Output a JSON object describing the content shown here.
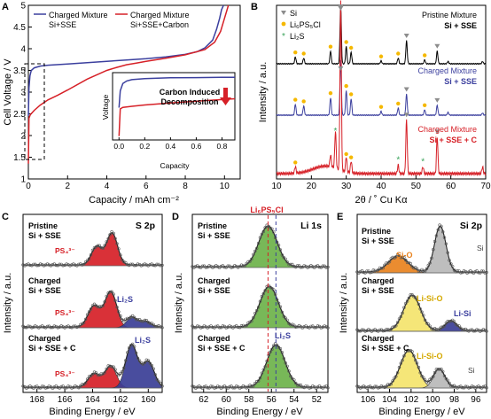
{
  "panels": {
    "A": {
      "letter": "A",
      "xlabel": "Capacity / mAh cm⁻²",
      "ylabel": "Cell Voltage / V",
      "xticks": [
        "0",
        "2",
        "4",
        "6",
        "8",
        "10"
      ],
      "yticks": [
        "1",
        "1.5",
        "2",
        "2.5",
        "3",
        "3.5",
        "4",
        "4.5",
        "5"
      ],
      "legend1_l1": "Charged Mixture",
      "legend1_l2": "Si+SSE",
      "legend2_l1": "Charged Mixture",
      "legend2_l2": "Si+SSE+Carbon",
      "inset_ylabel": "Voltage",
      "inset_xlabel": "Capacity",
      "inset_xticks": [
        "0.0",
        "0.2",
        "0.4",
        "0.6",
        "0.8"
      ],
      "inset_note_l1": "Carbon Induced",
      "inset_note_l2": "Decomposition"
    },
    "B": {
      "letter": "B",
      "xlabel": "2θ / ˚ Cu Kα",
      "ylabel": "Intensity / a.u.",
      "xticks": [
        "10",
        "20",
        "30",
        "40",
        "50",
        "60",
        "70"
      ],
      "key_si": "Si",
      "key_lpsc": "Li₆PS₅Cl",
      "key_li2s": "Li₂S",
      "t1_l1": "Pristine Mixture",
      "t1_l2": "Si + SSE",
      "t2_l1": "Charged Mixture",
      "t2_l2": "Si + SSE",
      "t3_l1": "Charged Mixture",
      "t3_l2": "Si + SSE + C"
    },
    "C": {
      "letter": "C",
      "title": "S 2p",
      "xlabel": "Binding Energy / eV",
      "ylabel": "Intensity / a.u.",
      "xticks": [
        "168",
        "166",
        "164",
        "162",
        "160"
      ],
      "r1_l1": "Pristine",
      "r1_l2": "Si + SSE",
      "r2_l1": "Charged",
      "r2_l2": "Si + SSE",
      "r3_l1": "Charged",
      "r3_l2": "Si + SSE + C",
      "ps4": "PS₄³⁻",
      "li2s": "Li₂S"
    },
    "D": {
      "letter": "D",
      "title": "Li 1s",
      "top_label": "Li₆PS₅Cl",
      "xlabel": "Binding Energy / eV",
      "ylabel": "Intensity / a.u.",
      "xticks": [
        "62",
        "60",
        "58",
        "56",
        "54",
        "52"
      ],
      "r1_l1": "Pristine",
      "r1_l2": "Si + SSE",
      "r2_l1": "Charged",
      "r2_l2": "Si + SSE",
      "r3_l1": "Charged",
      "r3_l2": "Si + SSE + C",
      "li2s": "Li₂S"
    },
    "E": {
      "letter": "E",
      "title": "Si 2p",
      "xlabel": "Binding Energy / eV",
      "ylabel": "Intensity / a.u.",
      "xticks": [
        "106",
        "104",
        "102",
        "100",
        "98",
        "96"
      ],
      "r1_l1": "Pristine",
      "r1_l2": "Si + SSE",
      "r2_l1": "Charged",
      "r2_l2": "Si + SSE",
      "r3_l1": "Charged",
      "r3_l2": "Si + SSE + C",
      "si": "Si",
      "sio": "Si-O",
      "lisio": "Li-Si-O",
      "lisi": "Li-Si"
    }
  },
  "colors": {
    "blue": "#3b3f9e",
    "red": "#d62027",
    "green_fill": "#6cb24a",
    "orange": "#e8821e",
    "yellow": "#f4e46c",
    "gray_fill": "#b9b9b9",
    "navy_fill": "#3a3e96",
    "marker_si": "#8c8c8c",
    "marker_lpsc": "#f5b800",
    "marker_li2s": "#3aa35a"
  },
  "chart_data": [
    {
      "panel": "A",
      "type": "line",
      "xlabel": "Capacity / mAh cm⁻²",
      "ylabel": "Cell Voltage / V",
      "xlim": [
        0,
        10.8
      ],
      "ylim": [
        1,
        5
      ],
      "series": [
        {
          "name": "Charged Mixture Si+SSE",
          "color": "#3b3f9e",
          "x": [
            0,
            0.03,
            0.08,
            0.15,
            0.3,
            0.6,
            1,
            2,
            3,
            4,
            5,
            6,
            7,
            8,
            8.6,
            9.0,
            9.4,
            9.6,
            9.75,
            9.85,
            9.95
          ],
          "y": [
            2.45,
            3.1,
            3.38,
            3.5,
            3.56,
            3.6,
            3.62,
            3.65,
            3.68,
            3.71,
            3.74,
            3.77,
            3.81,
            3.87,
            3.93,
            4.02,
            4.2,
            4.45,
            4.7,
            4.9,
            5.0
          ]
        },
        {
          "name": "Charged Mixture Si+SSE+Carbon",
          "color": "#d62027",
          "x": [
            0,
            0.03,
            0.1,
            0.3,
            0.6,
            1,
            1.5,
            2,
            3,
            4,
            4.5,
            5,
            5.5,
            6,
            7,
            8,
            9,
            9.5,
            9.8,
            10.0,
            10.2
          ],
          "y": [
            1.35,
            2.4,
            2.48,
            2.58,
            2.7,
            2.82,
            2.93,
            3.05,
            3.3,
            3.5,
            3.57,
            3.63,
            3.67,
            3.71,
            3.78,
            3.86,
            3.98,
            4.15,
            4.4,
            4.7,
            5.0
          ]
        }
      ]
    },
    {
      "panel": "A-inset",
      "type": "line",
      "xlabel": "Capacity",
      "ylabel": "Voltage",
      "xlim": [
        -0.05,
        0.9
      ],
      "series": [
        {
          "name": "Si+SSE",
          "color": "#3b3f9e",
          "x": [
            0,
            0.01,
            0.03,
            0.06,
            0.1,
            0.2,
            0.4,
            0.6,
            0.8,
            0.9
          ],
          "y": [
            2.45,
            3.1,
            3.38,
            3.48,
            3.53,
            3.57,
            3.6,
            3.61,
            3.62,
            3.62
          ]
        },
        {
          "name": "Si+SSE+Carbon",
          "color": "#d62027",
          "x": [
            0,
            0.01,
            0.03,
            0.1,
            0.2,
            0.4,
            0.6,
            0.8,
            0.9
          ],
          "y": [
            1.35,
            2.4,
            2.46,
            2.5,
            2.55,
            2.63,
            2.7,
            2.76,
            2.79
          ]
        }
      ]
    },
    {
      "panel": "B",
      "type": "line",
      "xlabel": "2θ / ˚ Cu Kα",
      "ylabel": "Intensity / a.u.",
      "xlim": [
        10,
        70
      ],
      "series": [
        {
          "name": "Pristine Mixture Si + SSE",
          "color": "#000000",
          "baseline": 0,
          "peaks": [
            [
              15.4,
              0.12
            ],
            [
              17.8,
              0.1
            ],
            [
              25.5,
              0.22
            ],
            [
              28.4,
              1.0
            ],
            [
              30.0,
              0.3
            ],
            [
              31.4,
              0.2
            ],
            [
              40.0,
              0.05
            ],
            [
              44.9,
              0.1
            ],
            [
              47.3,
              0.4
            ],
            [
              52.5,
              0.07
            ],
            [
              56.1,
              0.22
            ],
            [
              59.2,
              0.04
            ],
            [
              69.1,
              0.04
            ]
          ]
        },
        {
          "name": "Charged Mixture Si + SSE",
          "color": "#3b3f9e",
          "baseline": 1,
          "peaks": [
            [
              15.4,
              0.2
            ],
            [
              17.8,
              0.17
            ],
            [
              25.5,
              0.32
            ],
            [
              28.4,
              1.0
            ],
            [
              30.0,
              0.45
            ],
            [
              31.4,
              0.3
            ],
            [
              40.0,
              0.07
            ],
            [
              44.9,
              0.13
            ],
            [
              47.3,
              0.38
            ],
            [
              52.5,
              0.1
            ],
            [
              56.1,
              0.18
            ],
            [
              59.2,
              0.05
            ],
            [
              69.1,
              0.04
            ]
          ]
        },
        {
          "name": "Charged Mixture Si + SSE + C",
          "color": "#d62027",
          "baseline": 2,
          "peaks": [
            [
              15.4,
              0.04
            ],
            [
              25.5,
              0.07
            ],
            [
              26.9,
              0.22
            ],
            [
              28.4,
              1.0
            ],
            [
              30.0,
              0.09
            ],
            [
              31.4,
              0.07
            ],
            [
              44.9,
              0.05
            ],
            [
              47.3,
              0.32
            ],
            [
              52.0,
              0.04
            ],
            [
              56.1,
              0.22
            ],
            [
              69.1,
              0.04
            ]
          ]
        }
      ],
      "markers": {
        "Si": [
          28.4,
          47.3,
          56.1
        ],
        "Li6PS5Cl": [
          15.4,
          17.8,
          25.5,
          30.0,
          31.4,
          40.0,
          44.9,
          52.5
        ],
        "Li2S": [
          26.9,
          44.9,
          52.0
        ]
      }
    },
    {
      "panel": "C",
      "type": "area",
      "xlim": [
        169,
        159
      ],
      "xlabel": "Binding Energy / eV",
      "rows": [
        {
          "label": "Pristine Si + SSE",
          "components": [
            {
              "name": "PS4 3-",
              "color": "#d62027",
              "centers": [
                163.7,
                162.6
              ],
              "amps": [
                0.55,
                0.95
              ],
              "width": 0.55
            }
          ]
        },
        {
          "label": "Charged Si + SSE",
          "components": [
            {
              "name": "PS4 3-",
              "color": "#d62027",
              "centers": [
                163.9,
                162.7
              ],
              "amps": [
                0.6,
                1.0
              ],
              "width": 0.6
            },
            {
              "name": "Li2S",
              "color": "#3a3e96",
              "centers": [
                161.2,
                160.2
              ],
              "amps": [
                0.28,
                0.16
              ],
              "width": 0.55
            }
          ]
        },
        {
          "label": "Charged Si + SSE + C",
          "components": [
            {
              "name": "PS4 3-",
              "color": "#d62027",
              "centers": [
                163.9,
                162.7
              ],
              "amps": [
                0.32,
                0.5
              ],
              "width": 0.6
            },
            {
              "name": "Li2S",
              "color": "#3a3e96",
              "centers": [
                161.2,
                160.0
              ],
              "amps": [
                1.0,
                0.6
              ],
              "width": 0.6
            }
          ]
        }
      ]
    },
    {
      "panel": "D",
      "type": "area",
      "xlim": [
        63,
        51
      ],
      "xlabel": "Binding Energy / eV",
      "rows": [
        {
          "label": "Pristine Si + SSE",
          "components": [
            {
              "name": "Li6PS5Cl",
              "color": "#6cb24a",
              "centers": [
                56.3
              ],
              "amps": [
                1.0
              ],
              "width": 1.15
            }
          ]
        },
        {
          "label": "Charged Si + SSE",
          "components": [
            {
              "name": "Li6PS5Cl",
              "color": "#6cb24a",
              "centers": [
                56.2
              ],
              "amps": [
                1.0
              ],
              "width": 1.15
            }
          ]
        },
        {
          "label": "Charged Si + SSE + C",
          "components": [
            {
              "name": "Li2S",
              "color": "#6cb24a",
              "centers": [
                55.6
              ],
              "amps": [
                1.0
              ],
              "width": 1.15
            }
          ]
        }
      ],
      "reference_lines": {
        "Li6PS5Cl": 56.3,
        "Li2S": 55.6
      }
    },
    {
      "panel": "E",
      "type": "area",
      "xlim": [
        107,
        95
      ],
      "xlabel": "Binding Energy / eV",
      "rows": [
        {
          "label": "Pristine Si + SSE",
          "components": [
            {
              "name": "Si-O",
              "color": "#e8821e",
              "centers": [
                103.2
              ],
              "amps": [
                0.35
              ],
              "width": 1.3
            },
            {
              "name": "Si",
              "color": "#b9b9b9",
              "centers": [
                99.3
              ],
              "amps": [
                1.0
              ],
              "width": 0.75
            }
          ]
        },
        {
          "label": "Charged Si + SSE",
          "components": [
            {
              "name": "Li-Si-O",
              "color": "#f4e46c",
              "centers": [
                101.9
              ],
              "amps": [
                1.0
              ],
              "width": 1.1
            },
            {
              "name": "Li-Si",
              "color": "#3a3e96",
              "centers": [
                98.3
              ],
              "amps": [
                0.28
              ],
              "width": 0.75
            }
          ]
        },
        {
          "label": "Charged Si + SSE + C",
          "components": [
            {
              "name": "Li-Si-O",
              "color": "#f4e46c",
              "centers": [
                102.2
              ],
              "amps": [
                1.0
              ],
              "width": 1.1
            },
            {
              "name": "Si",
              "color": "#b9b9b9",
              "centers": [
                99.4
              ],
              "amps": [
                0.5
              ],
              "width": 0.75
            }
          ]
        }
      ]
    }
  ]
}
